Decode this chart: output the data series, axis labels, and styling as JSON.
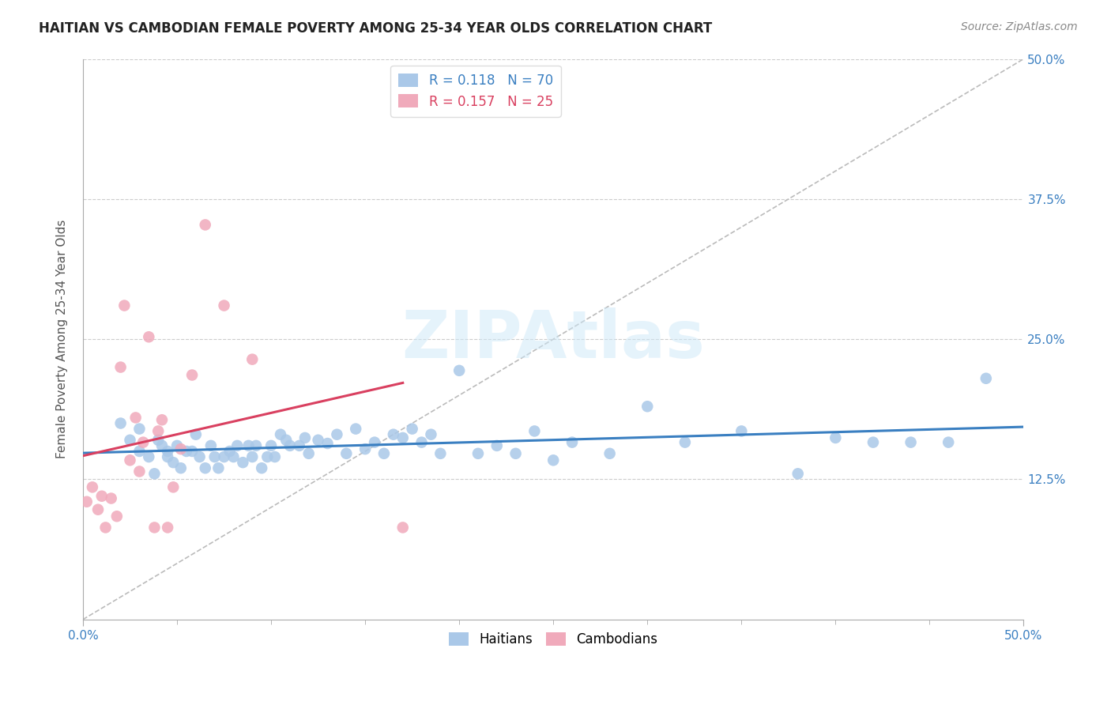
{
  "title": "HAITIAN VS CAMBODIAN FEMALE POVERTY AMONG 25-34 YEAR OLDS CORRELATION CHART",
  "source": "Source: ZipAtlas.com",
  "ylabel": "Female Poverty Among 25-34 Year Olds",
  "xlim": [
    0.0,
    0.5
  ],
  "ylim": [
    0.0,
    0.5
  ],
  "xticks": [
    0.0,
    0.5
  ],
  "xticklabels": [
    "0.0%",
    "50.0%"
  ],
  "yticks": [
    0.125,
    0.25,
    0.375,
    0.5
  ],
  "yticklabels": [
    "12.5%",
    "25.0%",
    "37.5%",
    "50.0%"
  ],
  "watermark_text": "ZIPAtlas",
  "haitian_R": "0.118",
  "haitian_N": "70",
  "cambodian_R": "0.157",
  "cambodian_N": "25",
  "haitian_color": "#aac8e8",
  "cambodian_color": "#f0aabb",
  "haitian_line_color": "#3a7fc1",
  "cambodian_line_color": "#d94060",
  "background_color": "#ffffff",
  "grid_color": "#cccccc",
  "title_fontsize": 12,
  "axis_fontsize": 11,
  "tick_fontsize": 11,
  "legend_fontsize": 12,
  "source_fontsize": 10,
  "haitian_x": [
    0.02,
    0.025,
    0.03,
    0.03,
    0.035,
    0.038,
    0.04,
    0.042,
    0.045,
    0.045,
    0.048,
    0.05,
    0.052,
    0.055,
    0.058,
    0.06,
    0.062,
    0.065,
    0.068,
    0.07,
    0.072,
    0.075,
    0.078,
    0.08,
    0.082,
    0.085,
    0.088,
    0.09,
    0.092,
    0.095,
    0.098,
    0.1,
    0.102,
    0.105,
    0.108,
    0.11,
    0.115,
    0.118,
    0.12,
    0.125,
    0.13,
    0.135,
    0.14,
    0.145,
    0.15,
    0.155,
    0.16,
    0.165,
    0.17,
    0.175,
    0.18,
    0.185,
    0.19,
    0.2,
    0.21,
    0.22,
    0.23,
    0.24,
    0.25,
    0.26,
    0.28,
    0.3,
    0.32,
    0.35,
    0.38,
    0.4,
    0.42,
    0.44,
    0.46,
    0.48
  ],
  "haitian_y": [
    0.175,
    0.16,
    0.15,
    0.17,
    0.145,
    0.13,
    0.16,
    0.155,
    0.145,
    0.15,
    0.14,
    0.155,
    0.135,
    0.15,
    0.15,
    0.165,
    0.145,
    0.135,
    0.155,
    0.145,
    0.135,
    0.145,
    0.15,
    0.145,
    0.155,
    0.14,
    0.155,
    0.145,
    0.155,
    0.135,
    0.145,
    0.155,
    0.145,
    0.165,
    0.16,
    0.155,
    0.155,
    0.162,
    0.148,
    0.16,
    0.157,
    0.165,
    0.148,
    0.17,
    0.152,
    0.158,
    0.148,
    0.165,
    0.162,
    0.17,
    0.158,
    0.165,
    0.148,
    0.222,
    0.148,
    0.155,
    0.148,
    0.168,
    0.142,
    0.158,
    0.148,
    0.19,
    0.158,
    0.168,
    0.13,
    0.162,
    0.158,
    0.158,
    0.158,
    0.215
  ],
  "cambodian_x": [
    0.002,
    0.005,
    0.008,
    0.01,
    0.012,
    0.015,
    0.018,
    0.02,
    0.022,
    0.025,
    0.028,
    0.03,
    0.032,
    0.035,
    0.038,
    0.04,
    0.042,
    0.045,
    0.048,
    0.052,
    0.058,
    0.065,
    0.075,
    0.09,
    0.17
  ],
  "cambodian_y": [
    0.105,
    0.118,
    0.098,
    0.11,
    0.082,
    0.108,
    0.092,
    0.225,
    0.28,
    0.142,
    0.18,
    0.132,
    0.158,
    0.252,
    0.082,
    0.168,
    0.178,
    0.082,
    0.118,
    0.152,
    0.218,
    0.352,
    0.28,
    0.232,
    0.082
  ]
}
